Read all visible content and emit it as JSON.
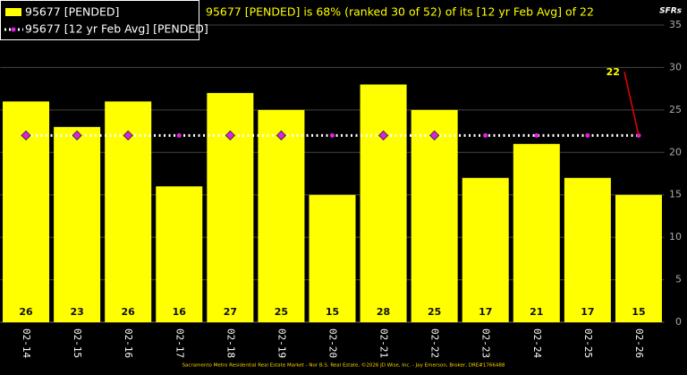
{
  "chart_data": {
    "type": "bar",
    "title": "95677 [PENDED] is 68% (ranked 30 of 52) of its [12 yr Feb Avg] of 22",
    "y_axis_label": "SFRs",
    "footer": "Sacramento Metro Residential Real Estate Market - Nor B.S. Real Estate, ©2026 JD Wise, Inc. - Jay Emerson, Broker, DRE#1766488",
    "categories": [
      "02-14",
      "02-15",
      "02-16",
      "02-17",
      "02-18",
      "02-19",
      "02-20",
      "02-21",
      "02-22",
      "02-23",
      "02-24",
      "02-25",
      "02-26"
    ],
    "series": [
      {
        "name": "95677 [PENDED]",
        "color": "#ffff00",
        "values": [
          26,
          23,
          26,
          16,
          27,
          25,
          15,
          28,
          25,
          17,
          21,
          17,
          15
        ]
      },
      {
        "name": "95677 [12 yr Feb Avg] [PENDED]",
        "color": "#e020e0",
        "values": [
          22,
          22,
          22,
          22,
          22,
          22,
          22,
          22,
          22,
          22,
          22,
          22,
          22
        ]
      }
    ],
    "ylim": [
      0,
      35
    ],
    "yticks": [
      0,
      5,
      10,
      15,
      20,
      25,
      30,
      35
    ],
    "grid": true,
    "legend": "top-left"
  }
}
